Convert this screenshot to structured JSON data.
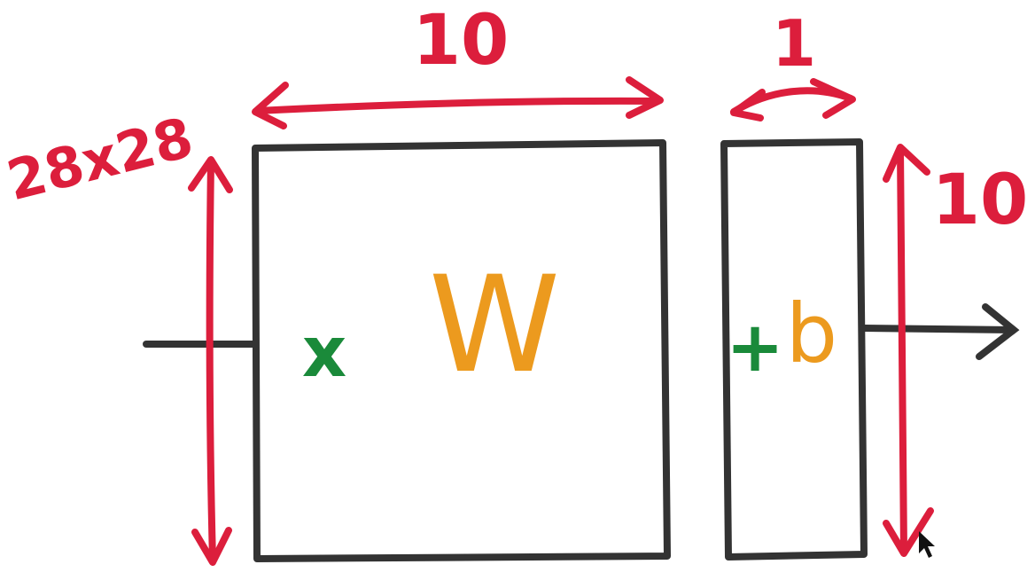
{
  "diagram": {
    "labels": {
      "weights_width": "10",
      "bias_width": "1",
      "input_size": "28x28",
      "output_size": "10",
      "input_symbol": "x",
      "weights_symbol": "W",
      "plus_symbol": "+",
      "bias_symbol": "b"
    },
    "colors": {
      "dimension": "#dc1e3c",
      "input_symbol": "#1a8a3a",
      "variable": "#ec9a1e",
      "outline": "#333333"
    }
  }
}
